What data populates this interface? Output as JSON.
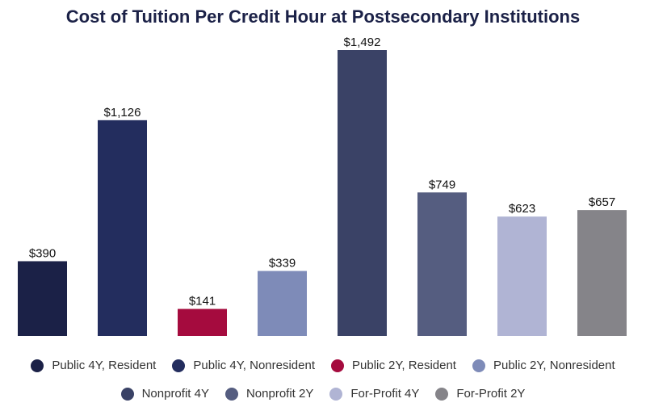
{
  "chart_data": {
    "type": "bar",
    "title": "Cost of Tuition Per Credit Hour at Postsecondary Institutions",
    "xlabel": "",
    "ylabel": "",
    "ylim": [
      0,
      1600
    ],
    "grid": false,
    "legend_position": "bottom",
    "categories": [
      "Public 4Y, Resident",
      "Public 4Y, Nonresident",
      "Public 2Y, Resident",
      "Public 2Y, Nonresident",
      "Nonprofit 4Y",
      "Nonprofit 2Y",
      "For-Profit 4Y",
      "For-Profit 2Y"
    ],
    "values": [
      390,
      1126,
      141,
      339,
      1492,
      749,
      623,
      657
    ],
    "value_labels": [
      "$390",
      "$1,126",
      "$141",
      "$339",
      "$1,492",
      "$749",
      "$623",
      "$657"
    ],
    "colors": [
      "#1b2147",
      "#232d5e",
      "#a50b3e",
      "#7e8bb8",
      "#3a4266",
      "#555d80",
      "#b0b4d4",
      "#858489"
    ]
  }
}
